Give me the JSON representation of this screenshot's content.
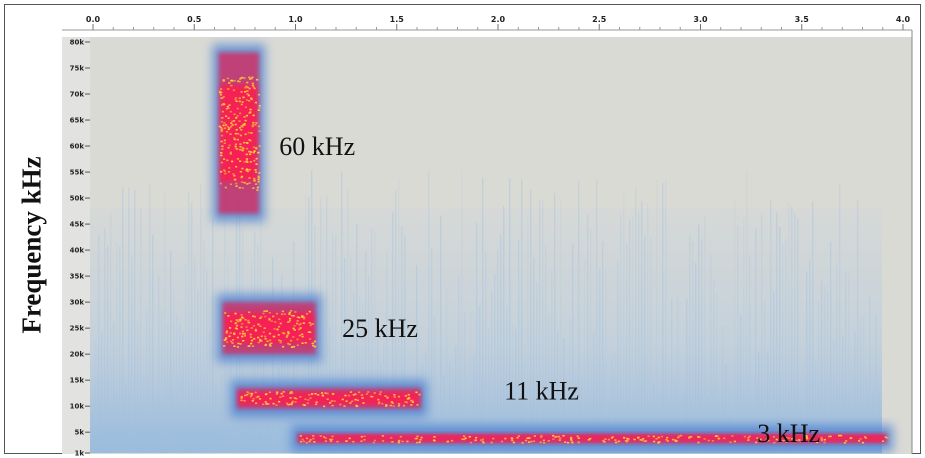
{
  "chart_data": {
    "type": "heatmap",
    "subtype": "spectrogram",
    "ylabel": "Frequency kHz",
    "xlabel": "",
    "title": "",
    "xlim": [
      0.0,
      4.0
    ],
    "ylim": [
      1,
      80
    ],
    "x_ticks": [
      "0.0",
      "0.5",
      "1.0",
      "1.5",
      "2.0",
      "2.5",
      "3.0",
      "3.5",
      "4.0"
    ],
    "y_ticks": [
      "80k",
      "75k",
      "70k",
      "65k",
      "60k",
      "55k",
      "50k",
      "45k",
      "40k",
      "35k",
      "30k",
      "25k",
      "20k",
      "15k",
      "10k",
      "5k",
      "1k"
    ],
    "annotations": [
      {
        "text": "60 kHz",
        "x": 0.92,
        "y": 60
      },
      {
        "text": "25 kHz",
        "x": 1.23,
        "y": 25
      },
      {
        "text": "11 kHz",
        "x": 2.03,
        "y": 13
      },
      {
        "text": "3 kHz",
        "x": 3.28,
        "y": 4.8
      }
    ],
    "bands": [
      {
        "label": "60 kHz",
        "x_start": 0.62,
        "x_end": 0.82,
        "f_low": 47,
        "f_high": 78
      },
      {
        "label": "25 kHz",
        "x_start": 0.64,
        "x_end": 1.1,
        "f_low": 20,
        "f_high": 30
      },
      {
        "label": "11 kHz",
        "x_start": 0.71,
        "x_end": 1.62,
        "f_low": 9.5,
        "f_high": 13.5
      },
      {
        "label": "3 kHz",
        "x_start": 1.01,
        "x_end": 3.92,
        "f_low": 2.8,
        "f_high": 4.8
      }
    ],
    "colors": {
      "background": "#dadad5",
      "noise": "#9fc0df",
      "signal_low": "#4a7fd0",
      "signal_mid": "#c8386e",
      "signal_high": "#ff1a50",
      "peak": "#ffd23c",
      "ruler": "#e6e6e6",
      "axis_text": "#222222"
    }
  }
}
